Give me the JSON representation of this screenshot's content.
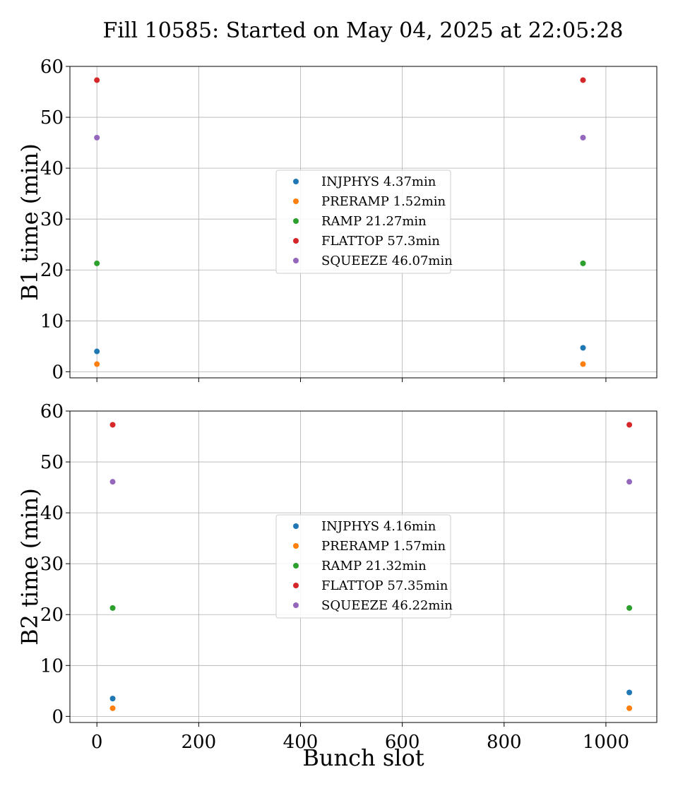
{
  "figure": {
    "title": "Fill 10585: Started on May 04, 2025 at 22:05:28"
  },
  "chart_data": [
    {
      "type": "scatter",
      "ylabel": "B1 time (min)",
      "xlabel": "",
      "xlim": [
        -53,
        1100
      ],
      "ylim": [
        -1.2,
        60
      ],
      "xticks": [
        0,
        200,
        400,
        600,
        800,
        1000
      ],
      "xtick_labels_visible": false,
      "yticks": [
        0,
        10,
        20,
        30,
        40,
        50,
        60
      ],
      "grid": true,
      "legend_placement": "center",
      "series": [
        {
          "name": "INJPHYS 4.37min",
          "color": "#1f77b4",
          "x": [
            0,
            955
          ],
          "y": [
            4.0,
            4.7
          ]
        },
        {
          "name": "PRERAMP 1.52min",
          "color": "#ff7f0e",
          "x": [
            0,
            955
          ],
          "y": [
            1.5,
            1.5
          ]
        },
        {
          "name": "RAMP 21.27min",
          "color": "#2ca02c",
          "x": [
            0,
            955
          ],
          "y": [
            21.3,
            21.3
          ]
        },
        {
          "name": "FLATTOP 57.3min",
          "color": "#d62728",
          "x": [
            0,
            955
          ],
          "y": [
            57.3,
            57.3
          ]
        },
        {
          "name": "SQUEEZE 46.07min",
          "color": "#9467bd",
          "x": [
            0,
            955
          ],
          "y": [
            46.0,
            46.0
          ]
        }
      ]
    },
    {
      "type": "scatter",
      "ylabel": "B2 time (min)",
      "xlabel": "Bunch slot",
      "xlim": [
        -53,
        1100
      ],
      "ylim": [
        -1.2,
        60
      ],
      "xticks": [
        0,
        200,
        400,
        600,
        800,
        1000
      ],
      "xtick_labels_visible": true,
      "yticks": [
        0,
        10,
        20,
        30,
        40,
        50,
        60
      ],
      "grid": true,
      "legend_placement": "center",
      "series": [
        {
          "name": "INJPHYS 4.16min",
          "color": "#1f77b4",
          "x": [
            31,
            1046
          ],
          "y": [
            3.5,
            4.7
          ]
        },
        {
          "name": "PRERAMP 1.57min",
          "color": "#ff7f0e",
          "x": [
            31,
            1046
          ],
          "y": [
            1.6,
            1.6
          ]
        },
        {
          "name": "RAMP 21.32min",
          "color": "#2ca02c",
          "x": [
            31,
            1046
          ],
          "y": [
            21.3,
            21.3
          ]
        },
        {
          "name": "FLATTOP 57.35min",
          "color": "#d62728",
          "x": [
            31,
            1046
          ],
          "y": [
            57.3,
            57.3
          ]
        },
        {
          "name": "SQUEEZE 46.22min",
          "color": "#9467bd",
          "x": [
            31,
            1046
          ],
          "y": [
            46.1,
            46.1
          ]
        }
      ]
    }
  ]
}
